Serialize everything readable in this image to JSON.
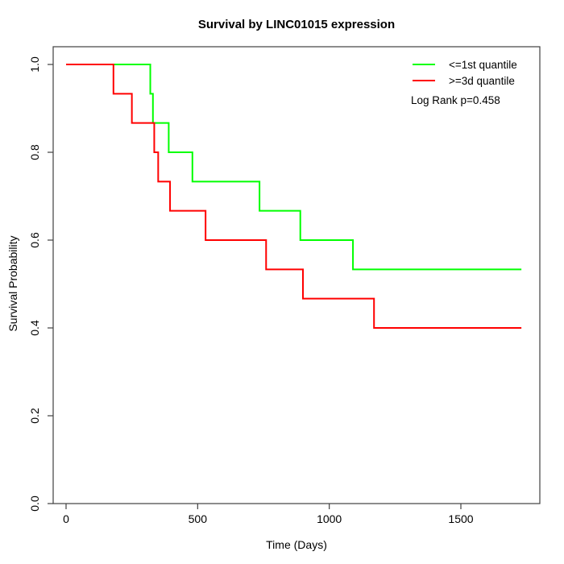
{
  "chart_data": {
    "type": "line",
    "subtype": "kaplan-meier-step",
    "title": "Survival by LINC01015 expression",
    "xlabel": "Time (Days)",
    "ylabel": "Survival Probability",
    "annotation": "Log Rank p=0.458",
    "xlim": [
      0,
      1800
    ],
    "ylim": [
      0.0,
      1.04
    ],
    "x_ticks": [
      0,
      500,
      1000,
      1500
    ],
    "y_ticks": [
      0.0,
      0.2,
      0.4,
      0.6,
      0.8,
      1.0
    ],
    "y_tick_labels": [
      "0.0",
      "0.2",
      "0.4",
      "0.6",
      "0.8",
      "1.0"
    ],
    "grid": false,
    "legend_position": "top-right",
    "axis_color": "#404040",
    "series": [
      {
        "name": "<=1st quantile",
        "color": "#00ff00",
        "end_time": 1730,
        "steps": [
          [
            0,
            1.0
          ],
          [
            320,
            0.9333
          ],
          [
            330,
            0.8667
          ],
          [
            390,
            0.8
          ],
          [
            480,
            0.7333
          ],
          [
            735,
            0.6667
          ],
          [
            890,
            0.6
          ],
          [
            1090,
            0.5333
          ]
        ]
      },
      {
        "name": ">=3d quantile",
        "color": "#ff0000",
        "end_time": 1730,
        "steps": [
          [
            0,
            1.0
          ],
          [
            180,
            0.9333
          ],
          [
            250,
            0.8667
          ],
          [
            335,
            0.8
          ],
          [
            350,
            0.7333
          ],
          [
            395,
            0.6667
          ],
          [
            530,
            0.6
          ],
          [
            760,
            0.5333
          ],
          [
            900,
            0.4667
          ],
          [
            1170,
            0.4
          ]
        ]
      }
    ]
  }
}
